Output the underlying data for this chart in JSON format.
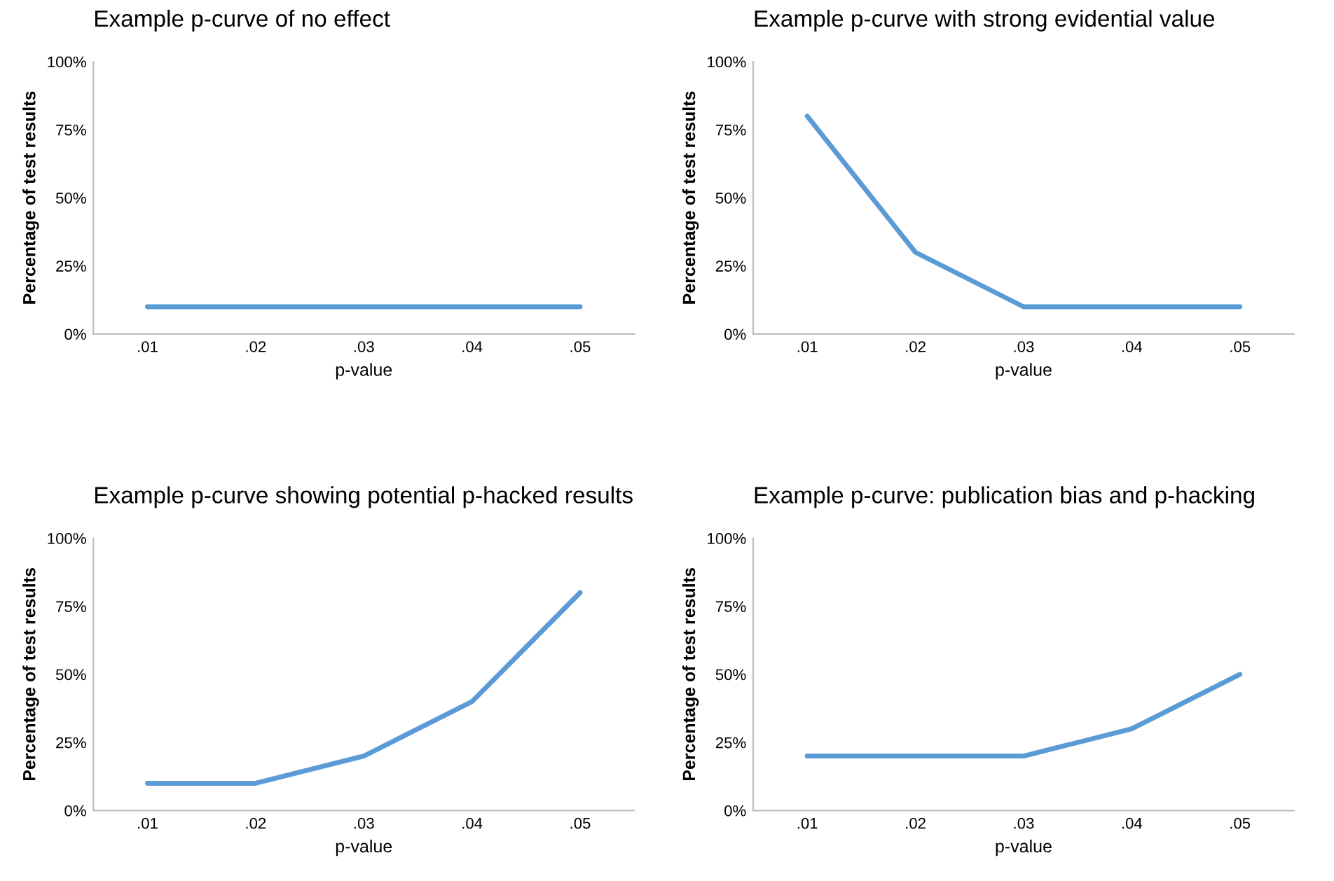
{
  "chart_data": [
    {
      "type": "line",
      "title": "Example p-curve of no effect",
      "xlabel": "p-value",
      "ylabel": "Percentage of test results",
      "categories": [
        ".01",
        ".02",
        ".03",
        ".04",
        ".05"
      ],
      "series": [
        {
          "color": "#5b9bd5",
          "values": [
            10,
            10,
            10,
            10,
            10
          ]
        }
      ],
      "ylim": [
        0,
        100
      ],
      "yticks": [
        {
          "value": 0,
          "label": "0%"
        },
        {
          "value": 25,
          "label": "25%"
        },
        {
          "value": 50,
          "label": "50%"
        },
        {
          "value": 75,
          "label": "75%"
        },
        {
          "value": 100,
          "label": "100%"
        }
      ]
    },
    {
      "type": "line",
      "title": "Example p-curve with strong evidential value",
      "xlabel": "p-value",
      "ylabel": "Percentage of test results",
      "categories": [
        ".01",
        ".02",
        ".03",
        ".04",
        ".05"
      ],
      "series": [
        {
          "color": "#5b9bd5",
          "values": [
            80,
            30,
            10,
            10,
            10
          ]
        }
      ],
      "ylim": [
        0,
        100
      ],
      "yticks": [
        {
          "value": 0,
          "label": "0%"
        },
        {
          "value": 25,
          "label": "25%"
        },
        {
          "value": 50,
          "label": "50%"
        },
        {
          "value": 75,
          "label": "75%"
        },
        {
          "value": 100,
          "label": "100%"
        }
      ]
    },
    {
      "type": "line",
      "title": "Example p-curve showing potential p-hacked results",
      "xlabel": "p-value",
      "ylabel": "Percentage of test results",
      "categories": [
        ".01",
        ".02",
        ".03",
        ".04",
        ".05"
      ],
      "series": [
        {
          "color": "#5b9bd5",
          "values": [
            10,
            10,
            20,
            40,
            80
          ]
        }
      ],
      "ylim": [
        0,
        100
      ],
      "yticks": [
        {
          "value": 0,
          "label": "0%"
        },
        {
          "value": 25,
          "label": "25%"
        },
        {
          "value": 50,
          "label": "50%"
        },
        {
          "value": 75,
          "label": "75%"
        },
        {
          "value": 100,
          "label": "100%"
        }
      ]
    },
    {
      "type": "line",
      "title": "Example p-curve: publication bias and p-hacking",
      "xlabel": "p-value",
      "ylabel": "Percentage of test results",
      "categories": [
        ".01",
        ".02",
        ".03",
        ".04",
        ".05"
      ],
      "series": [
        {
          "color": "#5b9bd5",
          "values": [
            20,
            20,
            20,
            30,
            50
          ]
        }
      ],
      "ylim": [
        0,
        100
      ],
      "yticks": [
        {
          "value": 0,
          "label": "0%"
        },
        {
          "value": 25,
          "label": "25%"
        },
        {
          "value": 50,
          "label": "50%"
        },
        {
          "value": 75,
          "label": "75%"
        },
        {
          "value": 100,
          "label": "100%"
        }
      ]
    }
  ]
}
